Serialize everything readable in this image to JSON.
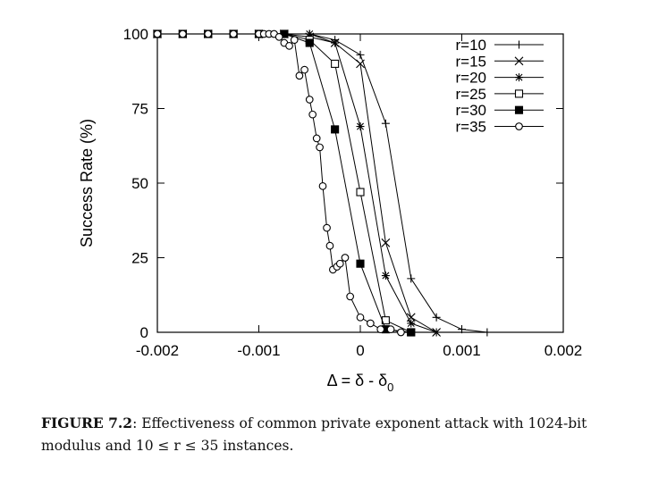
{
  "chart_data": {
    "type": "line",
    "title": "",
    "xlabel": "Δ = δ - δ",
    "xlabel_subscript": "0",
    "ylabel": "Success Rate (%)",
    "xlim": [
      -0.002,
      0.002
    ],
    "ylim": [
      0,
      100
    ],
    "xticks": [
      -0.002,
      -0.001,
      0,
      0.001,
      0.002
    ],
    "xtick_labels": [
      "-0.002",
      "-0.001",
      "0",
      "0.001",
      "0.002"
    ],
    "yticks": [
      0,
      25,
      50,
      75,
      100
    ],
    "ytick_labels": [
      "0",
      "25",
      "50",
      "75",
      "100"
    ],
    "legend_position": "top-right",
    "series": [
      {
        "name": "r=10",
        "marker": "plus",
        "x": [
          -0.002,
          -0.00175,
          -0.0015,
          -0.00125,
          -0.001,
          -0.00075,
          -0.0005,
          -0.00025,
          0,
          0.00025,
          0.0005,
          0.00075,
          0.001,
          0.00125
        ],
        "y": [
          100,
          100,
          100,
          100,
          100,
          100,
          100,
          98,
          93,
          70,
          18,
          5,
          1,
          0
        ]
      },
      {
        "name": "r=15",
        "marker": "cross",
        "x": [
          -0.002,
          -0.00175,
          -0.0015,
          -0.00125,
          -0.001,
          -0.00075,
          -0.0005,
          -0.00025,
          0,
          0.00025,
          0.0005,
          0.00075
        ],
        "y": [
          100,
          100,
          100,
          100,
          100,
          100,
          99,
          97,
          90,
          30,
          5,
          0
        ]
      },
      {
        "name": "r=20",
        "marker": "asterisk",
        "x": [
          -0.002,
          -0.00175,
          -0.0015,
          -0.00125,
          -0.001,
          -0.00075,
          -0.0005,
          -0.00025,
          0,
          0.00025,
          0.0005,
          0.00075
        ],
        "y": [
          100,
          100,
          100,
          100,
          100,
          100,
          100,
          97,
          69,
          19,
          3,
          0
        ]
      },
      {
        "name": "r=25",
        "marker": "open-square",
        "x": [
          -0.002,
          -0.00175,
          -0.0015,
          -0.00125,
          -0.001,
          -0.00075,
          -0.0005,
          -0.00025,
          0,
          0.00025,
          0.0005
        ],
        "y": [
          100,
          100,
          100,
          100,
          100,
          100,
          98,
          90,
          47,
          4,
          0
        ]
      },
      {
        "name": "r=30",
        "marker": "filled-square",
        "x": [
          -0.002,
          -0.00175,
          -0.0015,
          -0.00125,
          -0.001,
          -0.00075,
          -0.0005,
          -0.00025,
          0,
          0.00025,
          0.0005
        ],
        "y": [
          100,
          100,
          100,
          100,
          100,
          100,
          97,
          68,
          23,
          1,
          0
        ]
      },
      {
        "name": "r=35",
        "marker": "open-circle",
        "x": [
          -0.002,
          -0.00175,
          -0.0015,
          -0.00125,
          -0.001,
          -0.00095,
          -0.0009,
          -0.00085,
          -0.0008,
          -0.00075,
          -0.0007,
          -0.00065,
          -0.0006,
          -0.00055,
          -0.0005,
          -0.00047,
          -0.00043,
          -0.0004,
          -0.00037,
          -0.00033,
          -0.0003,
          -0.00027,
          -0.00023,
          -0.0002,
          -0.00015,
          -0.0001,
          0,
          0.0001,
          0.0002,
          0.0003,
          0.0004
        ],
        "y": [
          100,
          100,
          100,
          100,
          100,
          100,
          100,
          100,
          99,
          97,
          96,
          98,
          86,
          88,
          78,
          73,
          65,
          62,
          49,
          35,
          29,
          21,
          22,
          23,
          25,
          12,
          5,
          3,
          1,
          1,
          0
        ]
      }
    ]
  },
  "caption": {
    "label": "FIGURE 7.2",
    "text": ": Effectiveness of common private exponent attack with 1024-bit modulus and 10 ≤ r ≤ 35 instances."
  }
}
